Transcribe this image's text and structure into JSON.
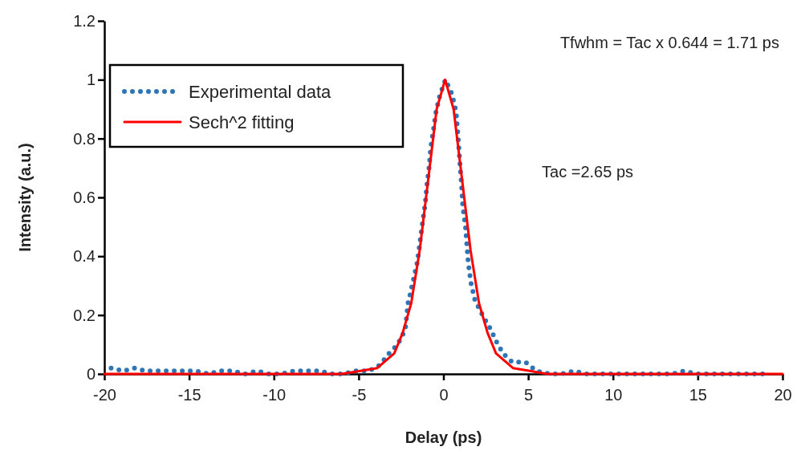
{
  "chart_data": {
    "type": "line",
    "xlabel": "Delay (ps)",
    "ylabel": "Intensity (a.u.)",
    "xlim": [
      -20,
      20
    ],
    "xticks": [
      -20,
      -15,
      -10,
      -5,
      0,
      5,
      10,
      15,
      20
    ],
    "ylim": [
      0,
      1.2
    ],
    "yticks": [
      0,
      0.2,
      0.4,
      0.6,
      0.8,
      1,
      1.2
    ],
    "grid": false,
    "legend": "top left",
    "annotations": [
      "Tfwhm = Tac x 0.644 = 1.71 ps",
      "Tac =2.65 ps"
    ],
    "series": [
      {
        "name": "Experimental data",
        "color": "#2e75b6",
        "line_style": "dotted",
        "x": [
          -19.6,
          -18.9,
          -18.2,
          -17.55,
          -16.8,
          -16.0,
          -14.6,
          -13.85,
          -13.2,
          -12.4,
          -11.7,
          -11.0,
          -10.3,
          -9.6,
          -8.8,
          -8.0,
          -7.3,
          -6.6,
          -5.9,
          -5.15,
          -4.4,
          -3.75,
          -3.2,
          -2.7,
          -2.25,
          -2.09,
          -1.77,
          -1.54,
          -1.38,
          -1.22,
          -1.07,
          -0.98,
          -0.83,
          -0.75,
          -0.59,
          -0.44,
          -0.2,
          0.12,
          0.51,
          0.75,
          0.83,
          0.91,
          0.98,
          1.07,
          1.14,
          1.3,
          1.38,
          1.46,
          1.62,
          1.86,
          2.4,
          2.8,
          3.12,
          3.51,
          4.06,
          4.85,
          5.48,
          6.27,
          6.98,
          7.69,
          8.4,
          9.1,
          9.85,
          10.6,
          11.3,
          12.0,
          12.8,
          13.5,
          14.2,
          14.9,
          15.6,
          16.3,
          17.1,
          17.8,
          18.6,
          19.2
        ],
        "values": [
          0.02,
          0.01,
          0.02,
          0.01,
          0.01,
          0.01,
          0.01,
          0.0,
          0.01,
          0.01,
          0.0,
          0.01,
          0.0,
          0.0,
          0.01,
          0.01,
          0.01,
          0.0,
          0.0,
          0.01,
          0.01,
          0.03,
          0.07,
          0.1,
          0.15,
          0.24,
          0.32,
          0.38,
          0.45,
          0.52,
          0.58,
          0.64,
          0.71,
          0.77,
          0.83,
          0.89,
          0.95,
          1.0,
          0.95,
          0.89,
          0.83,
          0.77,
          0.71,
          0.64,
          0.57,
          0.5,
          0.44,
          0.38,
          0.31,
          0.25,
          0.19,
          0.15,
          0.11,
          0.07,
          0.04,
          0.04,
          0.01,
          0.0,
          0.0,
          0.01,
          0.0,
          0.0,
          0.0,
          0.0,
          0.0,
          0.0,
          0.0,
          0.0,
          0.01,
          0.0,
          0.0,
          0.0,
          0.0,
          0.0,
          0.0,
          0.0
        ]
      },
      {
        "name": "Sech^2 fitting",
        "color": "#ff0000",
        "line_style": "solid",
        "x": [
          -20,
          -10,
          -6,
          -4.9,
          -3.9,
          -2.9,
          -2.4,
          -1.9,
          -1.4,
          -0.9,
          -0.4,
          0.1,
          0.6,
          1.1,
          1.6,
          2.1,
          2.6,
          3.1,
          4.1,
          5.1,
          6.1,
          10,
          20
        ],
        "values": [
          0,
          0,
          0,
          0.01,
          0.02,
          0.07,
          0.14,
          0.24,
          0.42,
          0.66,
          0.9,
          1,
          0.9,
          0.66,
          0.42,
          0.24,
          0.14,
          0.07,
          0.02,
          0.01,
          0,
          0,
          0
        ]
      }
    ]
  }
}
